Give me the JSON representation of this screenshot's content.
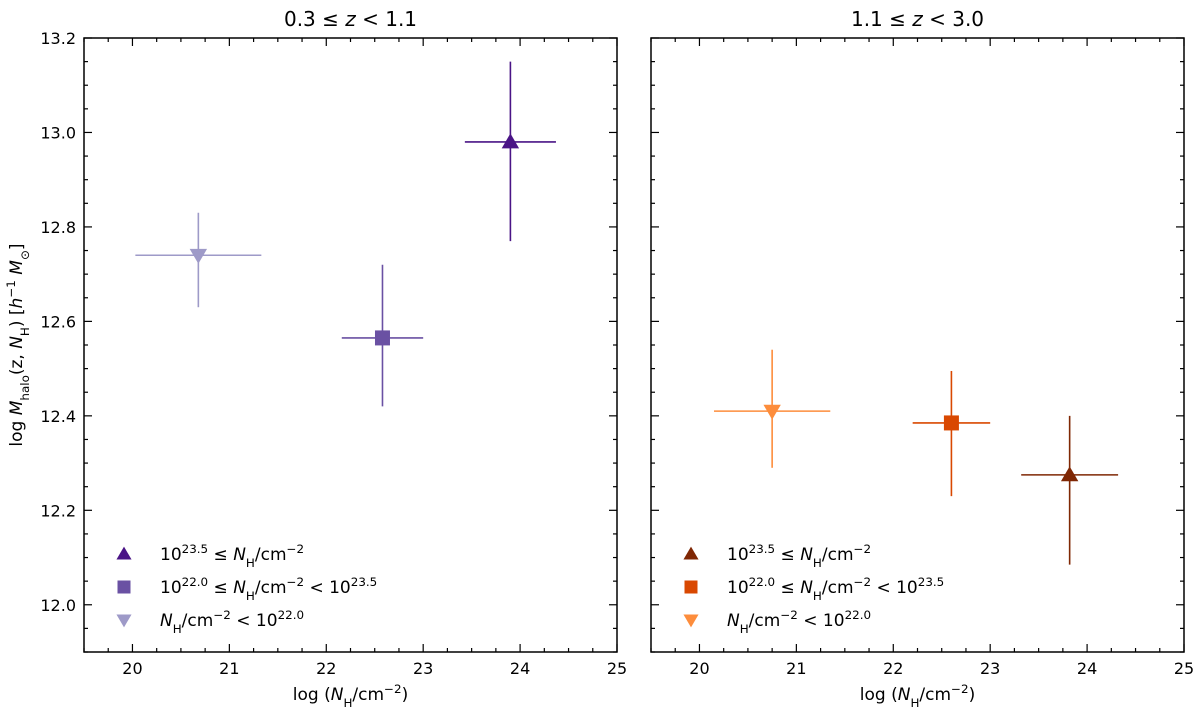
{
  "chart_data": [
    {
      "type": "scatter",
      "title": "0.3 ≤ z < 1.1",
      "xlabel": "log (N_H/cm^-2)",
      "ylabel": "log M_halo(z, N_H) [h^-1 M_⊙]",
      "xlim": [
        19.5,
        25
      ],
      "ylim": [
        11.9,
        13.2
      ],
      "xticks": [
        "20",
        "21",
        "22",
        "23",
        "24",
        "25"
      ],
      "yticks": [
        "12.0",
        "12.2",
        "12.4",
        "12.6",
        "12.8",
        "13.0",
        "13.2"
      ],
      "legend_position": "lower-left",
      "series": [
        {
          "name": "10^23.5 ≤ N_H/cm^-2",
          "marker": "triangle-up",
          "color": "#4a1486",
          "x": 23.9,
          "y": 12.98,
          "xerr": [
            0.47,
            0.47
          ],
          "yerr": [
            0.21,
            0.17
          ]
        },
        {
          "name": "10^22.0 ≤ N_H/cm^-2 < 10^23.5",
          "marker": "square",
          "color": "#6a51a3",
          "x": 22.58,
          "y": 12.565,
          "xerr": [
            0.42,
            0.42
          ],
          "yerr": [
            0.145,
            0.155
          ]
        },
        {
          "name": "N_H/cm^-2 < 10^22.0",
          "marker": "triangle-down",
          "color": "#9e9ac8",
          "x": 20.68,
          "y": 12.74,
          "xerr": [
            0.65,
            0.65
          ],
          "yerr": [
            0.11,
            0.09
          ]
        }
      ]
    },
    {
      "type": "scatter",
      "title": "1.1 ≤ z < 3.0",
      "xlabel": "log (N_H/cm^-2)",
      "ylabel": "",
      "xlim": [
        19.5,
        25
      ],
      "ylim": [
        11.9,
        13.2
      ],
      "xticks": [
        "20",
        "21",
        "22",
        "23",
        "24",
        "25"
      ],
      "yticks": [],
      "legend_position": "lower-left",
      "series": [
        {
          "name": "10^23.5 ≤ N_H/cm^-2",
          "marker": "triangle-up",
          "color": "#7f2704",
          "x": 23.82,
          "y": 12.275,
          "xerr": [
            0.5,
            0.5
          ],
          "yerr": [
            0.19,
            0.125
          ]
        },
        {
          "name": "10^22.0 ≤ N_H/cm^-2 < 10^23.5",
          "marker": "square",
          "color": "#d94801",
          "x": 22.6,
          "y": 12.385,
          "xerr": [
            0.4,
            0.4
          ],
          "yerr": [
            0.155,
            0.11
          ]
        },
        {
          "name": "N_H/cm^-2 < 10^22.0",
          "marker": "triangle-down",
          "color": "#fd8d3c",
          "x": 20.75,
          "y": 12.41,
          "xerr": [
            0.6,
            0.6
          ],
          "yerr": [
            0.12,
            0.13
          ]
        }
      ]
    }
  ]
}
